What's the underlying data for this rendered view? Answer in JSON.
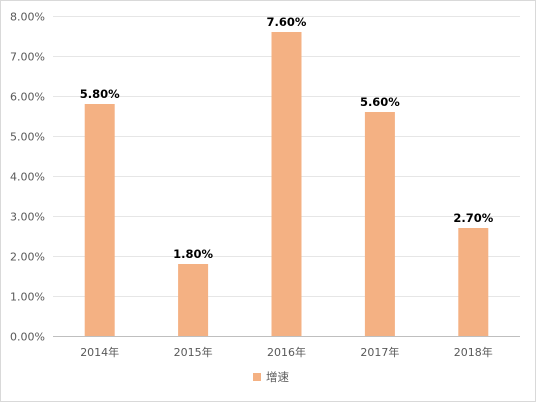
{
  "chart_data": {
    "type": "bar",
    "title": "",
    "xlabel": "",
    "ylabel": "",
    "categories": [
      "2014年",
      "2015年",
      "2016年",
      "2017年",
      "2018年"
    ],
    "series": [
      {
        "name": "增速",
        "values": [
          5.8,
          1.8,
          7.6,
          5.6,
          2.7
        ],
        "labels": [
          "5.80%",
          "1.80%",
          "7.60%",
          "5.60%",
          "2.70%"
        ],
        "color": "#f4b183"
      }
    ],
    "ylim": [
      0,
      8
    ],
    "yticks": [
      0,
      1,
      2,
      3,
      4,
      5,
      6,
      7,
      8
    ],
    "ytick_labels": [
      "0.00%",
      "1.00%",
      "2.00%",
      "3.00%",
      "4.00%",
      "5.00%",
      "6.00%",
      "7.00%",
      "8.00%"
    ],
    "grid": true,
    "gridline_color": "#e6e6e6",
    "legend": "bottom"
  }
}
